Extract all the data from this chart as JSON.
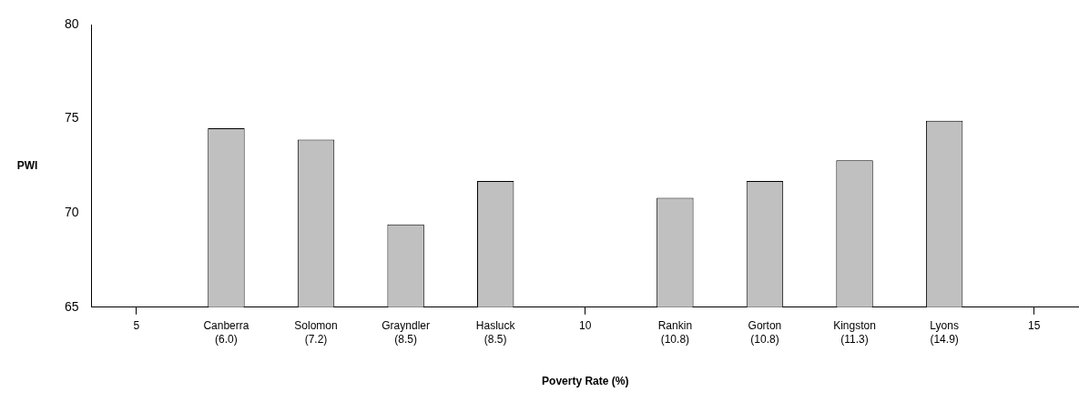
{
  "chart_data": {
    "type": "bar",
    "xlabel": "Poverty Rate (%)",
    "ylabel": "PWI",
    "categories": [
      "5",
      "Canberra\n(6.0)",
      "Solomon\n(7.2)",
      "Grayndler\n(8.5)",
      "Hasluck\n(8.5)",
      "10",
      "Rankin\n(10.8)",
      "Gorton\n(10.8)",
      "Kingston\n(11.3)",
      "Lyons\n(14.9)",
      "15"
    ],
    "values": [
      null,
      74.5,
      73.9,
      69.4,
      71.7,
      null,
      70.8,
      71.7,
      72.8,
      74.9,
      null
    ],
    "color": "#c0c0c0",
    "ylim": [
      65,
      80
    ],
    "yticks": [
      65,
      70,
      75,
      80
    ],
    "grid": false,
    "legend": false
  }
}
